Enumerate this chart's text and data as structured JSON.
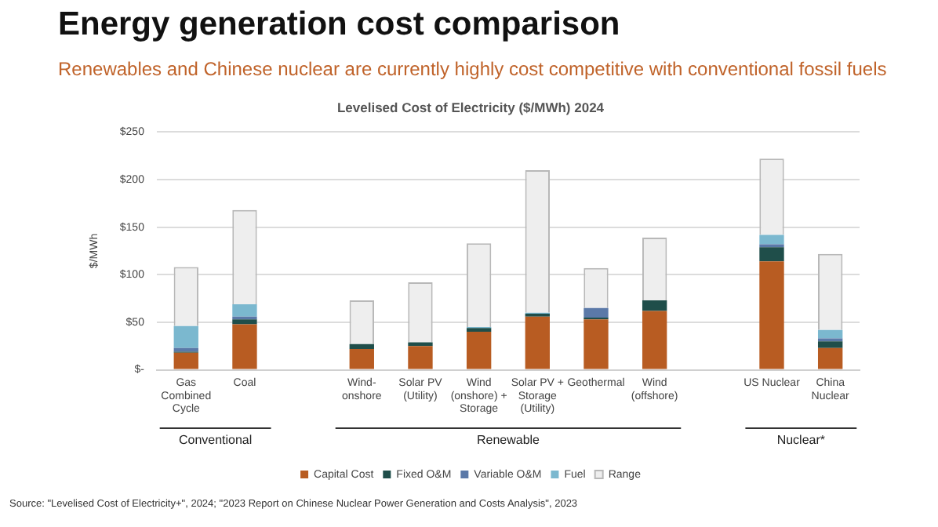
{
  "chart_data": {
    "type": "bar",
    "stacked": true,
    "title": "Energy generation cost comparison",
    "subtitle": "Renewables and Chinese nuclear are currently highly cost competitive with conventional fossil fuels",
    "annotations": [
      "Levelised Cost of Electricity ($/MWh) 2024",
      "Conventional",
      "Renewable",
      "Nuclear*",
      "Source: \"Levelised Cost of Electricity+\", 2024; \"2023 Report on Chinese Nuclear Power Generation and Costs Analysis\", 2023"
    ],
    "ylabel": "$/MWh",
    "categories": [
      "Gas Combined Cycle",
      "Coal",
      null,
      "Wind-onshore",
      "Solar PV (Utility)",
      "Wind (onshore) + Storage",
      "Solar PV + Storage (Utility)",
      "Geothermal",
      "Wind (offshore)",
      null,
      "US Nuclear",
      "China Nuclear"
    ],
    "series": [
      {
        "name": "Capital Cost",
        "color": "#b85c22",
        "values": [
          18,
          48,
          null,
          22,
          25,
          40,
          56,
          53,
          62,
          null,
          114,
          23
        ]
      },
      {
        "name": "Fixed O&M",
        "color": "#1f4e4a",
        "values": [
          1,
          5,
          null,
          5,
          4,
          4,
          3,
          2,
          11,
          null,
          15,
          7
        ]
      },
      {
        "name": "Variable O&M",
        "color": "#5b79a8",
        "values": [
          4,
          3,
          null,
          0,
          0,
          0,
          0,
          10,
          0,
          null,
          3,
          3
        ]
      },
      {
        "name": "Fuel",
        "color": "#7bb8cf",
        "values": [
          23,
          13,
          null,
          0,
          0,
          1,
          1,
          0,
          0,
          null,
          10,
          9
        ]
      },
      {
        "name": "Range",
        "color": "#eeeeee",
        "values": [
          62,
          99,
          null,
          46,
          63,
          88,
          150,
          42,
          66,
          null,
          80,
          80
        ]
      }
    ],
    "ylim": [
      0,
      250
    ],
    "yticks": [
      {
        "value": 0,
        "label": "$-"
      },
      {
        "value": 50,
        "label": "$50"
      },
      {
        "value": 100,
        "label": "$100"
      },
      {
        "value": 150,
        "label": "$150"
      },
      {
        "value": 200,
        "label": "$200"
      },
      {
        "value": 250,
        "label": "$250"
      }
    ],
    "grid": "y",
    "legend": "bottom"
  }
}
